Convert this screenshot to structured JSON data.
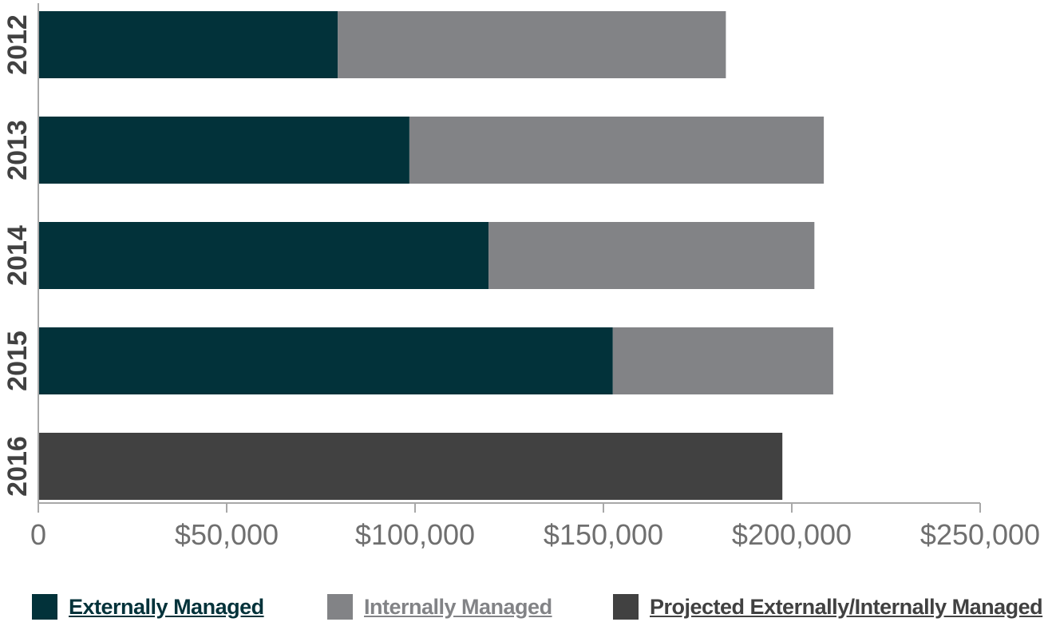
{
  "chart_data": {
    "type": "bar",
    "orientation": "horizontal",
    "stacked": true,
    "categories": [
      "2012",
      "2013",
      "2014",
      "2015",
      "2016"
    ],
    "series": [
      {
        "name": "Externally Managed",
        "color": "#02323a",
        "values": [
          79500,
          98500,
          119500,
          152500,
          null
        ]
      },
      {
        "name": "Internally Managed",
        "color": "#828386",
        "values": [
          103000,
          110000,
          86500,
          58500,
          null
        ]
      },
      {
        "name": "Projected Externally/Internally Managed",
        "color": "#414141",
        "values": [
          null,
          null,
          null,
          null,
          197500
        ]
      }
    ],
    "xaxis": {
      "ticks": [
        0,
        50000,
        100000,
        150000,
        200000,
        250000
      ],
      "tick_labels": [
        "0",
        "$50,000",
        "$100,000",
        "$150,000",
        "$200,000",
        "$250,000"
      ],
      "range": [
        0,
        250000
      ]
    },
    "grid": false,
    "legend_position": "bottom"
  }
}
